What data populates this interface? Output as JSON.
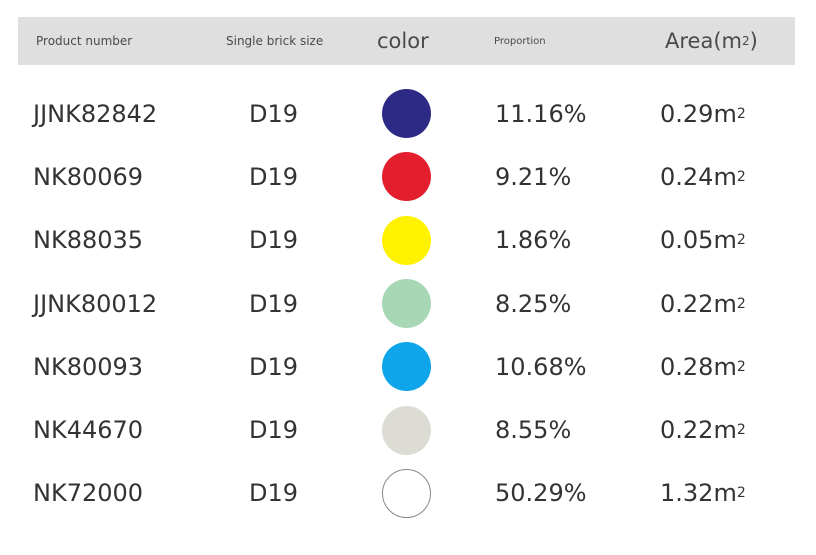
{
  "header": {
    "product_number": "Product number",
    "single_brick_size": "Single brick size",
    "color": "color",
    "proportion": "Proportion",
    "area": "Area(m",
    "area_sup": "2",
    "area_close": ")"
  },
  "rows": [
    {
      "product": "JJNK82842",
      "size": "D19",
      "color_hex": "#2d2a86",
      "proportion": "11.16%",
      "area": "0.29m",
      "area_sup": "2"
    },
    {
      "product": "NK80069",
      "size": "D19",
      "color_hex": "#e31e2d",
      "proportion": "9.21%",
      "area": "0.24m",
      "area_sup": "2"
    },
    {
      "product": "NK88035",
      "size": "D19",
      "color_hex": "#fff200",
      "proportion": "1.86%",
      "area": "0.05m",
      "area_sup": "2"
    },
    {
      "product": "JJNK80012",
      "size": "D19",
      "color_hex": "#a7d7b5",
      "proportion": "8.25%",
      "area": "0.22m",
      "area_sup": "2"
    },
    {
      "product": "NK80093",
      "size": "D19",
      "color_hex": "#0ea5ea",
      "proportion": "10.68%",
      "area": "0.28m",
      "area_sup": "2"
    },
    {
      "product": "NK44670",
      "size": "D19",
      "color_hex": "#dcdcd4",
      "proportion": "8.55%",
      "area": "0.22m",
      "area_sup": "2"
    },
    {
      "product": "NK72000",
      "size": "D19",
      "color_hex": "#ffffff",
      "proportion": "50.29%",
      "area": "1.32m",
      "area_sup": "2"
    }
  ]
}
